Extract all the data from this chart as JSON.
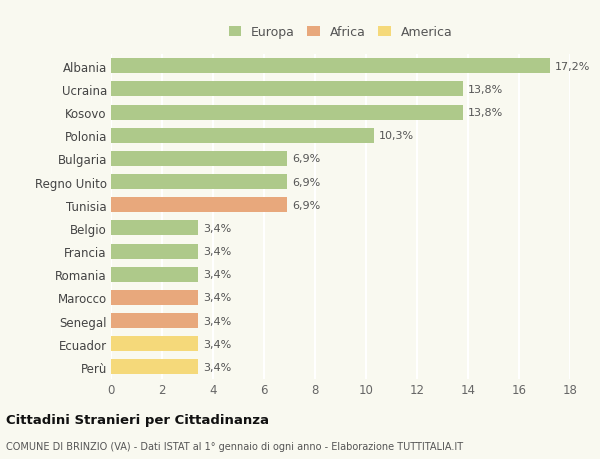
{
  "categories": [
    "Albania",
    "Ucraina",
    "Kosovo",
    "Polonia",
    "Bulgaria",
    "Regno Unito",
    "Tunisia",
    "Belgio",
    "Francia",
    "Romania",
    "Marocco",
    "Senegal",
    "Ecuador",
    "Perù"
  ],
  "values": [
    17.2,
    13.8,
    13.8,
    10.3,
    6.9,
    6.9,
    6.9,
    3.4,
    3.4,
    3.4,
    3.4,
    3.4,
    3.4,
    3.4
  ],
  "labels": [
    "17,2%",
    "13,8%",
    "13,8%",
    "10,3%",
    "6,9%",
    "6,9%",
    "6,9%",
    "3,4%",
    "3,4%",
    "3,4%",
    "3,4%",
    "3,4%",
    "3,4%",
    "3,4%"
  ],
  "continents": [
    "Europa",
    "Europa",
    "Europa",
    "Europa",
    "Europa",
    "Europa",
    "Africa",
    "Europa",
    "Europa",
    "Europa",
    "Africa",
    "Africa",
    "America",
    "America"
  ],
  "colors": {
    "Europa": "#aec98a",
    "Africa": "#e8a87c",
    "America": "#f5d97a"
  },
  "xlim": [
    0,
    18
  ],
  "xticks": [
    0,
    2,
    4,
    6,
    8,
    10,
    12,
    14,
    16,
    18
  ],
  "title": "Cittadini Stranieri per Cittadinanza",
  "subtitle": "COMUNE DI BRINZIO (VA) - Dati ISTAT al 1° gennaio di ogni anno - Elaborazione TUTTITALIA.IT",
  "bg_color": "#f9f9f0",
  "grid_color": "#ffffff"
}
